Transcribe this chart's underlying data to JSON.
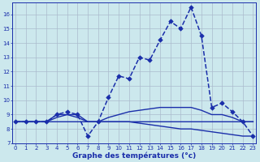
{
  "bg_color": "#cce8ed",
  "grid_color": "#aabbcc",
  "line_color": "#1a2eaa",
  "xlabel": "Graphe des températures (°c)",
  "xlim": [
    0,
    23
  ],
  "ylim": [
    7,
    16.8
  ],
  "yticks": [
    7,
    8,
    9,
    10,
    11,
    12,
    13,
    14,
    15,
    16
  ],
  "xticks": [
    0,
    1,
    2,
    3,
    4,
    5,
    6,
    7,
    8,
    9,
    10,
    11,
    12,
    13,
    14,
    15,
    16,
    17,
    18,
    19,
    20,
    21,
    22,
    23
  ],
  "series": [
    {
      "x": [
        0,
        1,
        2,
        3,
        4,
        5,
        6,
        7,
        8,
        9,
        10,
        11,
        12,
        13,
        14,
        15,
        16,
        17,
        18,
        19,
        20,
        21,
        22,
        23
      ],
      "y": [
        8.5,
        8.5,
        8.5,
        8.5,
        9.0,
        9.2,
        9.0,
        7.5,
        8.5,
        10.2,
        11.7,
        11.5,
        13.0,
        12.8,
        14.2,
        15.5,
        15.0,
        16.5,
        14.5,
        9.5,
        9.8,
        9.2,
        8.5,
        7.5
      ],
      "marker": "D",
      "markersize": 2.8,
      "linestyle": "--",
      "linewidth": 1.1
    },
    {
      "x": [
        0,
        1,
        2,
        3,
        4,
        5,
        6,
        7,
        8,
        9,
        10,
        11,
        12,
        13,
        14,
        15,
        16,
        17,
        18,
        19,
        20,
        21,
        22,
        23
      ],
      "y": [
        8.5,
        8.5,
        8.5,
        8.5,
        8.8,
        9.0,
        8.8,
        8.5,
        8.5,
        8.8,
        9.0,
        9.2,
        9.3,
        9.4,
        9.5,
        9.5,
        9.5,
        9.5,
        9.3,
        9.0,
        9.0,
        8.8,
        8.5,
        8.5
      ],
      "marker": null,
      "markersize": 0,
      "linestyle": "-",
      "linewidth": 1.0
    },
    {
      "x": [
        0,
        1,
        2,
        3,
        4,
        5,
        6,
        7,
        8,
        9,
        10,
        11,
        12,
        13,
        14,
        15,
        16,
        17,
        18,
        19,
        20,
        21,
        22,
        23
      ],
      "y": [
        8.5,
        8.5,
        8.5,
        8.5,
        8.5,
        8.5,
        8.5,
        8.5,
        8.5,
        8.5,
        8.5,
        8.5,
        8.4,
        8.3,
        8.2,
        8.1,
        8.0,
        8.0,
        7.9,
        7.8,
        7.7,
        7.6,
        7.5,
        7.5
      ],
      "marker": null,
      "markersize": 0,
      "linestyle": "-",
      "linewidth": 1.0
    },
    {
      "x": [
        0,
        1,
        2,
        3,
        4,
        5,
        6,
        7,
        8,
        9,
        10,
        11,
        12,
        13,
        14,
        15,
        16,
        17,
        18,
        19,
        20,
        21,
        22,
        23
      ],
      "y": [
        8.5,
        8.5,
        8.5,
        8.5,
        9.0,
        9.0,
        9.0,
        8.5,
        8.5,
        8.5,
        8.5,
        8.5,
        8.5,
        8.5,
        8.5,
        8.5,
        8.5,
        8.5,
        8.5,
        8.5,
        8.5,
        8.5,
        8.5,
        8.5
      ],
      "marker": null,
      "markersize": 0,
      "linestyle": "-",
      "linewidth": 1.0
    }
  ]
}
